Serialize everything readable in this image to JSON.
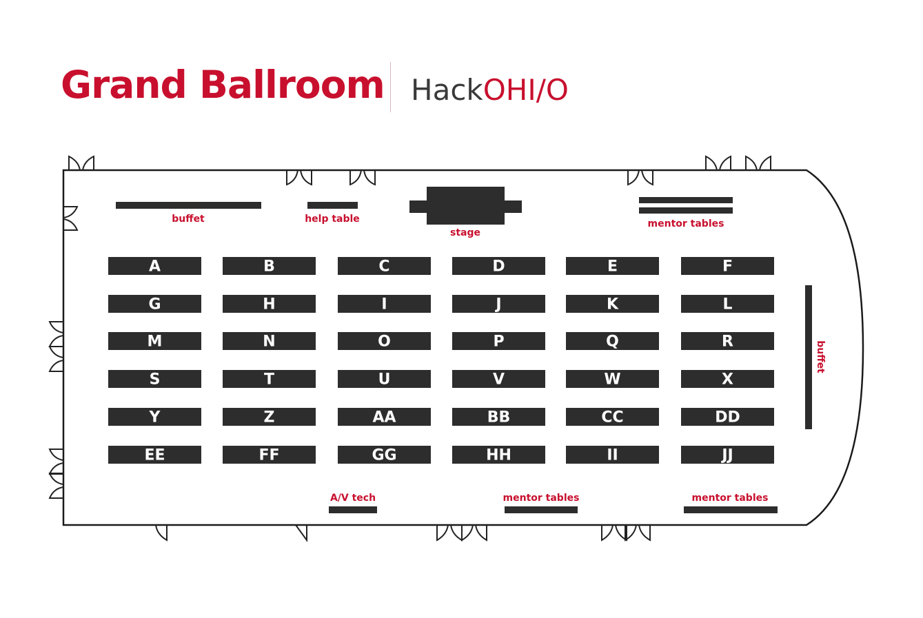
{
  "header": {
    "title": "Grand Ballroom",
    "brand_prefix": "Hack",
    "brand_suffix": "OHI/O"
  },
  "colors": {
    "accent": "#c8102e",
    "table": "#2d2d2d",
    "outline": "#222222"
  },
  "features": {
    "buffet_top": "buffet",
    "help_table": "help table",
    "stage": "stage",
    "mentor_tables_top": "mentor tables",
    "buffet_right": "buffet",
    "av_tech": "A/V tech",
    "mentor_tables_bottom_middle": "mentor tables",
    "mentor_tables_bottom_right": "mentor tables"
  },
  "table_rows": [
    [
      "A",
      "B",
      "C",
      "D",
      "E",
      "F"
    ],
    [
      "G",
      "H",
      "I",
      "J",
      "K",
      "L"
    ],
    [
      "M",
      "N",
      "O",
      "P",
      "Q",
      "R"
    ],
    [
      "S",
      "T",
      "U",
      "V",
      "W",
      "X"
    ],
    [
      "Y",
      "Z",
      "AA",
      "BB",
      "CC",
      "DD"
    ],
    [
      "EE",
      "FF",
      "GG",
      "HH",
      "II",
      "JJ"
    ]
  ]
}
